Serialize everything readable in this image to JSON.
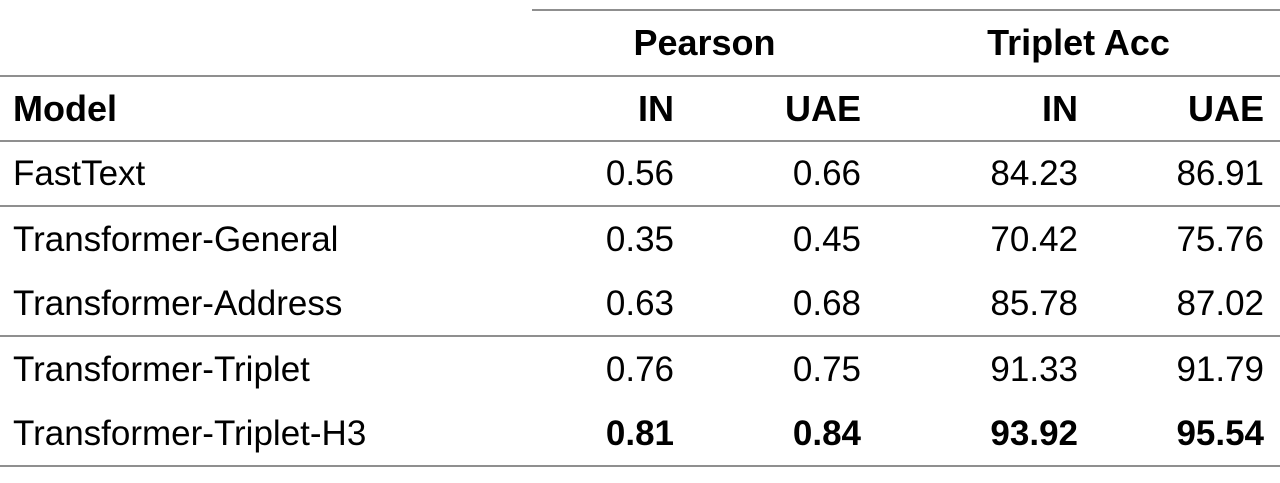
{
  "table": {
    "col_groups": [
      {
        "label": "Pearson",
        "span": 2
      },
      {
        "label": "Triplet Acc",
        "span": 2
      }
    ],
    "columns": {
      "model": "Model",
      "pearson_in": "IN",
      "pearson_uae": "UAE",
      "triplet_in": "IN",
      "triplet_uae": "UAE"
    },
    "rows": [
      {
        "model": "FastText",
        "values": [
          "0.56",
          "0.66",
          "84.23",
          "86.91"
        ],
        "bold": false
      },
      {
        "model": "Transformer-General",
        "values": [
          "0.35",
          "0.45",
          "70.42",
          "75.76"
        ],
        "bold": false
      },
      {
        "model": "Transformer-Address",
        "values": [
          "0.63",
          "0.68",
          "85.78",
          "87.02"
        ],
        "bold": false
      },
      {
        "model": "Transformer-Triplet",
        "values": [
          "0.76",
          "0.75",
          "91.33",
          "91.79"
        ],
        "bold": false
      },
      {
        "model": "Transformer-Triplet-H3",
        "values": [
          "0.81",
          "0.84",
          "93.92",
          "95.54"
        ],
        "bold": true
      }
    ],
    "colors": {
      "text": "#000000",
      "rule": "#8f8f8f",
      "background": "#ffffff"
    }
  }
}
